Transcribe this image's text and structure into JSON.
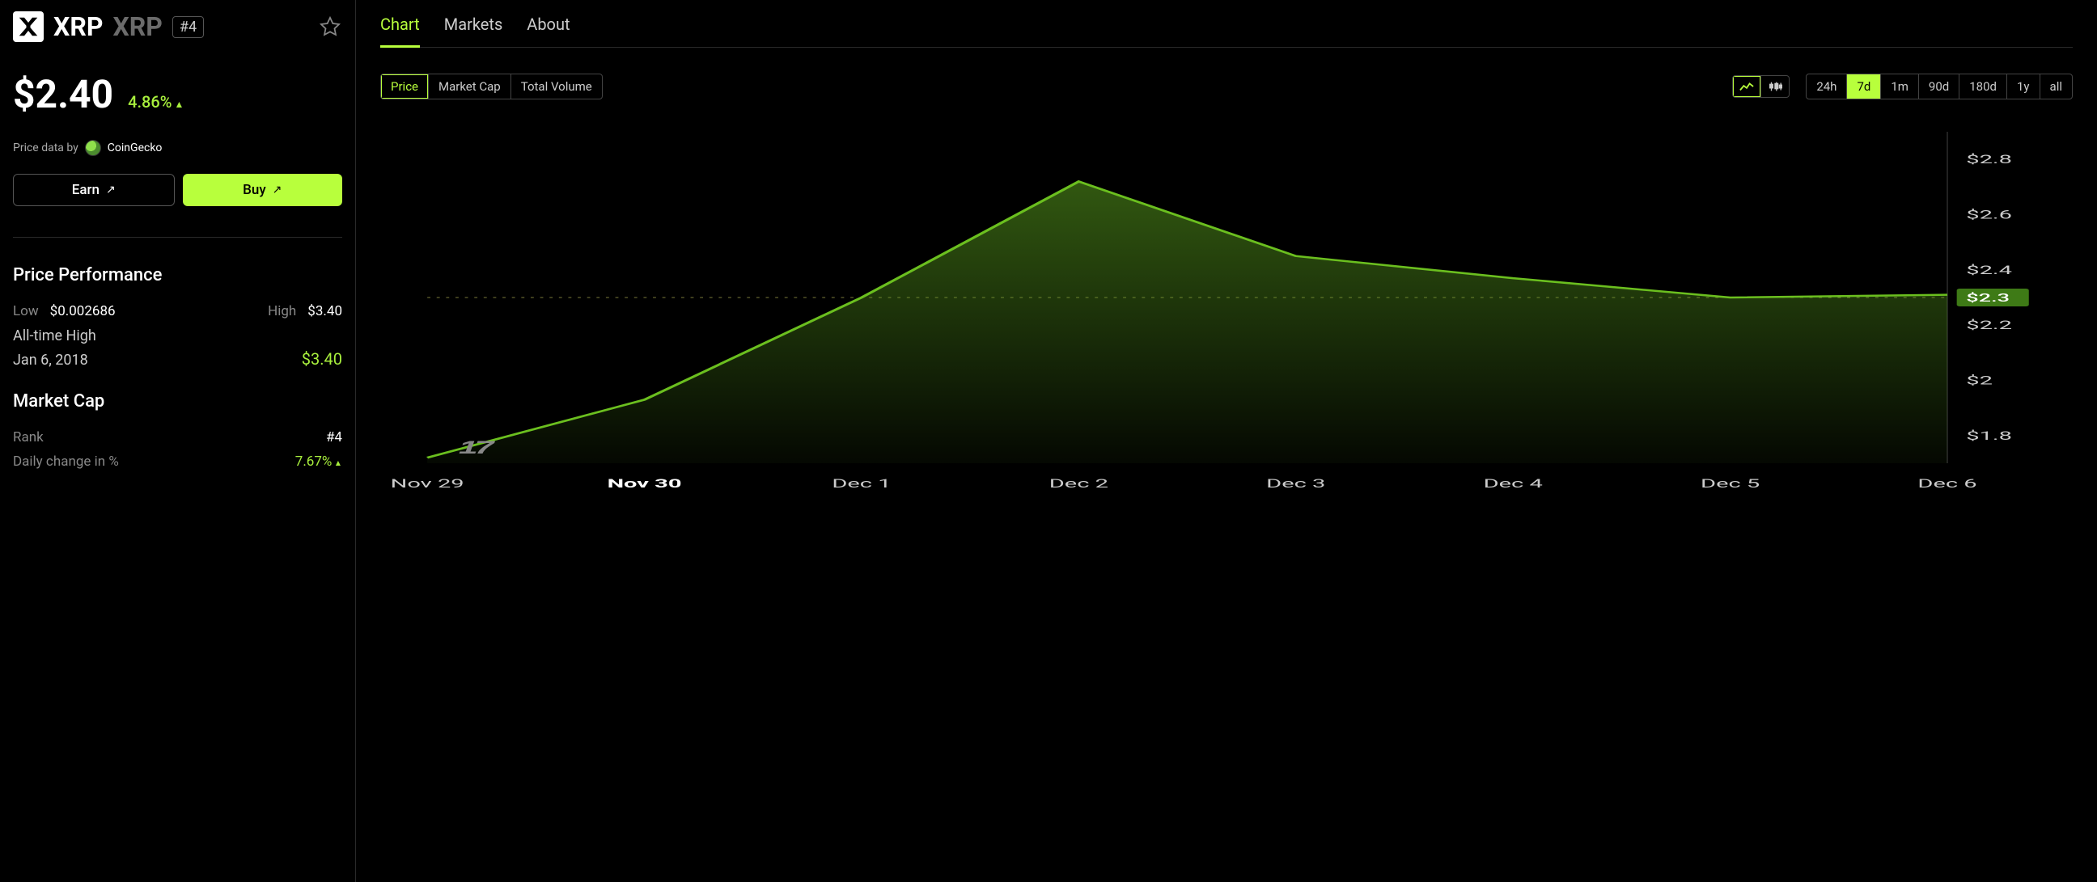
{
  "coin": {
    "name": "XRP",
    "symbol": "XRP",
    "rank_badge": "#4",
    "price": "$2.40",
    "pct_change": "4.86%",
    "pct_direction": "up"
  },
  "provider": {
    "prefix": "Price data by",
    "name": "CoinGecko"
  },
  "actions": {
    "earn": "Earn",
    "buy": "Buy"
  },
  "price_perf": {
    "title": "Price Performance",
    "low_label": "Low",
    "low": "$0.002686",
    "high_label": "High",
    "high": "$3.40",
    "ath_label": "All-time High",
    "ath_date": "Jan 6, 2018",
    "ath_value": "$3.40"
  },
  "market_cap": {
    "title": "Market Cap",
    "rank_label": "Rank",
    "rank_value": "#4",
    "daily_change_label": "Daily change in %",
    "daily_change_value": "7.67%"
  },
  "tabs": {
    "items": [
      "Chart",
      "Markets",
      "About"
    ],
    "active_index": 0
  },
  "metric_seg": {
    "items": [
      "Price",
      "Market Cap",
      "Total Volume"
    ],
    "active_index": 0
  },
  "chart_type_seg": {
    "active_index": 0
  },
  "range_seg": {
    "items": [
      "24h",
      "7d",
      "1m",
      "90d",
      "180d",
      "1y",
      "all"
    ],
    "active_index": 1
  },
  "chart": {
    "type": "area",
    "line_color": "#6bbf1f",
    "area_top_color": "rgba(90,160,30,0.55)",
    "area_bottom_color": "rgba(90,160,30,0.05)",
    "background_color": "#000000",
    "y_axis": {
      "ticks": [
        1.8,
        2.0,
        2.2,
        2.4,
        2.6,
        2.8
      ],
      "tick_labels": [
        "$1.8",
        "$2",
        "$2.2",
        "$2.4",
        "$2.6",
        "$2.8"
      ],
      "min": 1.7,
      "max": 2.9,
      "current_marker": {
        "value": 2.3,
        "label": "$2.3",
        "bg": "#3e7a16"
      }
    },
    "x_axis": {
      "labels": [
        "Nov 29",
        "Nov 30",
        "Dec 1",
        "Dec 2",
        "Dec 3",
        "Dec 4",
        "Dec 5",
        "Dec 6"
      ],
      "bold_index": 1
    },
    "series": {
      "x": [
        0,
        1,
        2,
        3,
        4,
        5,
        6,
        7
      ],
      "y": [
        1.72,
        1.93,
        2.3,
        2.72,
        2.45,
        2.37,
        2.3,
        2.31
      ]
    },
    "dotted_ref": 2.3,
    "tv_logo": "17"
  },
  "colors": {
    "accent": "#b8ff3c",
    "accent_text": "#a8ef3d",
    "muted": "#888888",
    "border": "#2a2a2a"
  }
}
